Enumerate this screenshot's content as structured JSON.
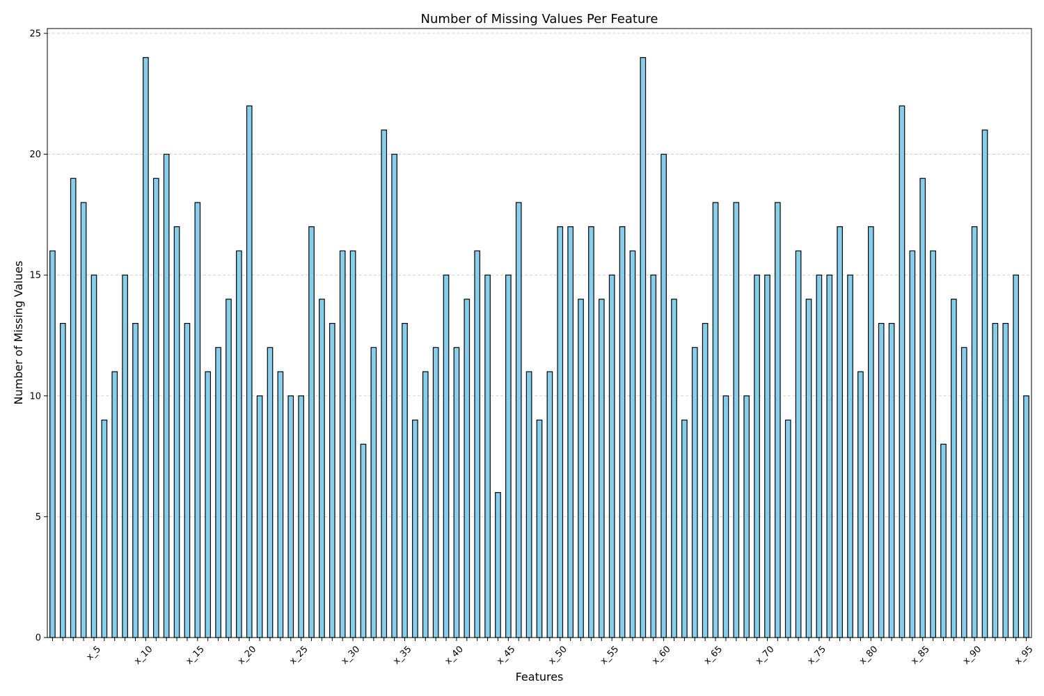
{
  "chart_data": {
    "type": "bar",
    "title": "Number of Missing Values Per Feature",
    "xlabel": "Features",
    "ylabel": "Number of Missing Values",
    "ylim": [
      0,
      25.2
    ],
    "yticks": [
      0,
      5,
      10,
      15,
      20,
      25
    ],
    "grid": "y-dashed",
    "colors": {
      "bar_fill": "#87ceeb",
      "bar_edge": "#000000",
      "grid": "#c8c8c8"
    },
    "category_prefix": "x_",
    "category_start": 1,
    "labeled_every": 5,
    "tick_labels": [
      "x_5",
      "x_10",
      "x_15",
      "x_20",
      "x_25",
      "x_30",
      "x_35",
      "x_40",
      "x_45",
      "x_50",
      "x_55",
      "x_60",
      "x_65",
      "x_70",
      "x_75",
      "x_80",
      "x_85",
      "x_90",
      "x_95"
    ],
    "values": [
      16,
      13,
      19,
      18,
      15,
      9,
      11,
      15,
      13,
      24,
      19,
      20,
      17,
      13,
      18,
      11,
      12,
      14,
      16,
      22,
      10,
      12,
      11,
      10,
      10,
      17,
      14,
      13,
      16,
      16,
      8,
      12,
      21,
      20,
      13,
      9,
      11,
      12,
      15,
      12,
      14,
      16,
      15,
      6,
      15,
      18,
      11,
      9,
      11,
      17,
      17,
      14,
      17,
      14,
      15,
      17,
      16,
      24,
      15,
      20,
      14,
      9,
      12,
      13,
      18,
      10,
      18,
      10,
      15,
      15,
      18,
      9,
      16,
      14,
      15,
      15,
      17,
      15,
      11,
      17,
      13,
      13,
      22,
      16,
      19,
      16,
      8,
      14,
      12,
      17,
      21,
      13,
      13,
      15,
      10
    ]
  }
}
